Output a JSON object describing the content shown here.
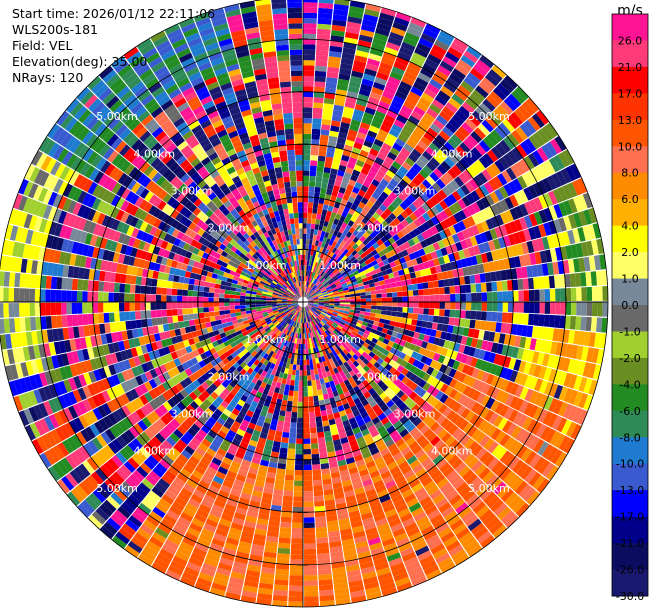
{
  "header": {
    "start_time": "Start time: 2026/01/12 22:11:06",
    "instrument": "WLS200s-181",
    "field": "Field: VEL",
    "elevation": "Elevation(deg): 35.00",
    "nrays": "NRays: 120"
  },
  "colorbar": {
    "unit": "m/s",
    "ticks": [
      "26.0",
      "21.0",
      "17.0",
      "13.0",
      "10.0",
      "8.0",
      "6.0",
      "4.0",
      "2.0",
      "1.0",
      "0.0",
      "-1.0",
      "-2.0",
      "-4.0",
      "-6.0",
      "-8.0",
      "-10.0",
      "-13.0",
      "-17.0",
      "-21.0",
      "-26.0",
      "-30.0"
    ],
    "colors": [
      "#ff1493",
      "#ff3a7a",
      "#ff0000",
      "#ff3300",
      "#ff5500",
      "#ff7050",
      "#ff8c00",
      "#ffb000",
      "#ffff00",
      "#ffff66",
      "#778899",
      "#696969",
      "#a0d030",
      "#6b8e23",
      "#228b22",
      "#2e8b57",
      "#1e7bd0",
      "#3a5bd0",
      "#0000ff",
      "#00008b",
      "#0b0b60",
      "#191970"
    ]
  },
  "chart_data": {
    "type": "ppi",
    "field": "VEL",
    "units": "m/s",
    "nrays": 120,
    "elevation_deg": 35.0,
    "range_ring_labels": [
      "1.00km",
      "2.00km",
      "3.00km",
      "4.00km",
      "5.00km"
    ],
    "ring_ranges_km": [
      1,
      2,
      3,
      4,
      5
    ],
    "max_range_km": 5.8,
    "colorbar_bounds": [
      -30,
      -26,
      -21,
      -17,
      -13,
      -10,
      -8,
      -6,
      -4,
      -2,
      -1,
      0,
      1,
      2,
      4,
      6,
      8,
      10,
      13,
      17,
      21,
      26,
      30
    ],
    "sectors": [
      {
        "name": "south-southeast-outer",
        "az_start": 110,
        "az_end": 215,
        "min_km": 3.2,
        "value_range": [
          6,
          13
        ]
      },
      {
        "name": "east-southeast-outer",
        "az_start": 95,
        "az_end": 130,
        "min_km": 4.3,
        "value_range": [
          2,
          8
        ]
      },
      {
        "name": "east-outer",
        "az_start": 70,
        "az_end": 95,
        "min_km": 5.0,
        "value_range": [
          -6,
          2
        ]
      },
      {
        "name": "west-outer",
        "az_start": 255,
        "az_end": 300,
        "min_km": 5.0,
        "value_range": [
          -2,
          4
        ]
      },
      {
        "name": "northwest-outer",
        "az_start": 300,
        "az_end": 345,
        "min_km": 4.6,
        "value_range": [
          -13,
          -4
        ]
      }
    ]
  }
}
